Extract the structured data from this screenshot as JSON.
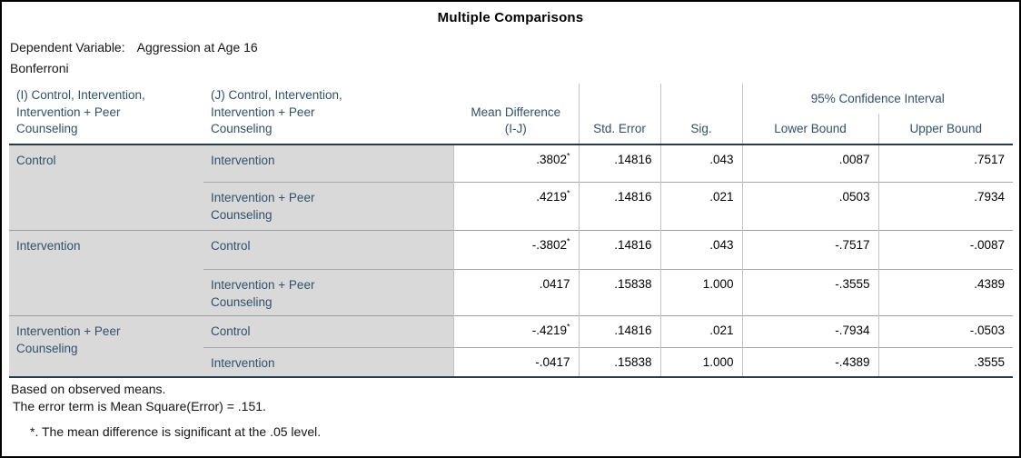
{
  "title": "Multiple Comparisons",
  "subtitle": {
    "dependent_variable_label": "Dependent Variable:",
    "dependent_variable_value": "Aggression at Age 16",
    "method": "Bonferroni"
  },
  "table": {
    "headers": {
      "col_i": "(I) Control, Intervention, Intervention + Peer Counseling",
      "col_j": "(J) Control, Intervention, Intervention + Peer Counseling",
      "mean_difference": "Mean Difference (I-J)",
      "std_error": "Std. Error",
      "sig": "Sig.",
      "confidence_interval": "95% Confidence Interval",
      "lower_bound": "Lower Bound",
      "upper_bound": "Upper Bound"
    },
    "groups": [
      {
        "i_label": "Control",
        "rows": [
          {
            "j_label": "Intervention",
            "mean_diff": ".3802",
            "star": "*",
            "std_error": ".14816",
            "sig": ".043",
            "lower": ".0087",
            "upper": ".7517"
          },
          {
            "j_label": "Intervention + Peer Counseling",
            "mean_diff": ".4219",
            "star": "*",
            "std_error": ".14816",
            "sig": ".021",
            "lower": ".0503",
            "upper": ".7934"
          }
        ]
      },
      {
        "i_label": "Intervention",
        "rows": [
          {
            "j_label": "Control",
            "mean_diff": "-.3802",
            "star": "*",
            "std_error": ".14816",
            "sig": ".043",
            "lower": "-.7517",
            "upper": "-.0087"
          },
          {
            "j_label": "Intervention + Peer Counseling",
            "mean_diff": ".0417",
            "star": "",
            "std_error": ".15838",
            "sig": "1.000",
            "lower": "-.3555",
            "upper": ".4389"
          }
        ]
      },
      {
        "i_label": "Intervention + Peer Counseling",
        "rows": [
          {
            "j_label": "Control",
            "mean_diff": "-.4219",
            "star": "*",
            "std_error": ".14816",
            "sig": ".021",
            "lower": "-.7934",
            "upper": "-.0503"
          },
          {
            "j_label": "Intervention",
            "mean_diff": "-.0417",
            "star": "",
            "std_error": ".15838",
            "sig": "1.000",
            "lower": "-.4389",
            "upper": ".3555"
          }
        ]
      }
    ]
  },
  "footnotes": {
    "line1": "Based on observed means.",
    "line2": "The error term is Mean Square(Error) = .151.",
    "line3": "*. The mean difference is significant at the .05 level."
  },
  "colors": {
    "label_cell_background": "#d9d9d9",
    "header_text": "#31506b",
    "body_text": "#000000",
    "thick_rule": "#223c52",
    "thin_rule": "#9e9e9e",
    "column_rule": "#c3c3c3",
    "outer_frame": "#000000"
  }
}
